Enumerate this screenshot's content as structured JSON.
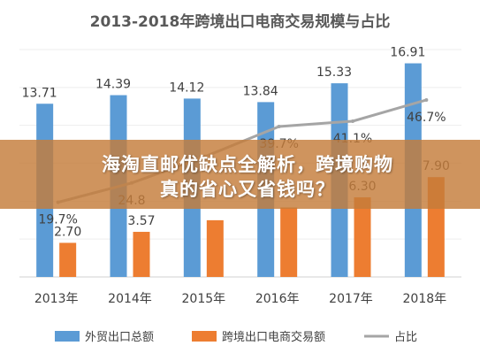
{
  "chart_data": {
    "type": "bar",
    "title": "2013-2018年跨境出口电商交易规模与占比",
    "categories": [
      "2013年",
      "2014年",
      "2015年",
      "2016年",
      "2017年",
      "2018年"
    ],
    "series": [
      {
        "name": "外贸出口总额",
        "type": "bar",
        "color": "#5b9bd5",
        "values": [
          13.71,
          14.39,
          14.12,
          13.84,
          15.33,
          16.91
        ]
      },
      {
        "name": "跨境出口电商交易额",
        "type": "bar",
        "color": "#ed7d31",
        "values": [
          2.7,
          3.57,
          4.49,
          5.5,
          6.3,
          7.9
        ]
      },
      {
        "name": "占比",
        "type": "line",
        "color": "#a5a5a5",
        "values": [
          19.7,
          24.8,
          31.8,
          39.7,
          41.1,
          46.7
        ]
      }
    ],
    "value_labels": {
      "外贸出口总额": [
        "13.71",
        "14.39",
        "14.12",
        "13.84",
        "15.33",
        "16.91"
      ],
      "跨境出口电商交易额": [
        "2.70",
        "3.57",
        "",
        "",
        "6.30",
        "7.90"
      ],
      "占比": [
        "19.7%",
        "24.8",
        "",
        "39.7%",
        "41.1%",
        "46.7%"
      ]
    },
    "ylim": [
      0,
      18
    ],
    "y2lim": [
      0,
      60
    ],
    "grid": true,
    "legend": "bottom"
  },
  "overlay": {
    "line1": "海淘直邮优缺点全解析，跨境购物",
    "line2": "真的省心又省钱吗？"
  }
}
